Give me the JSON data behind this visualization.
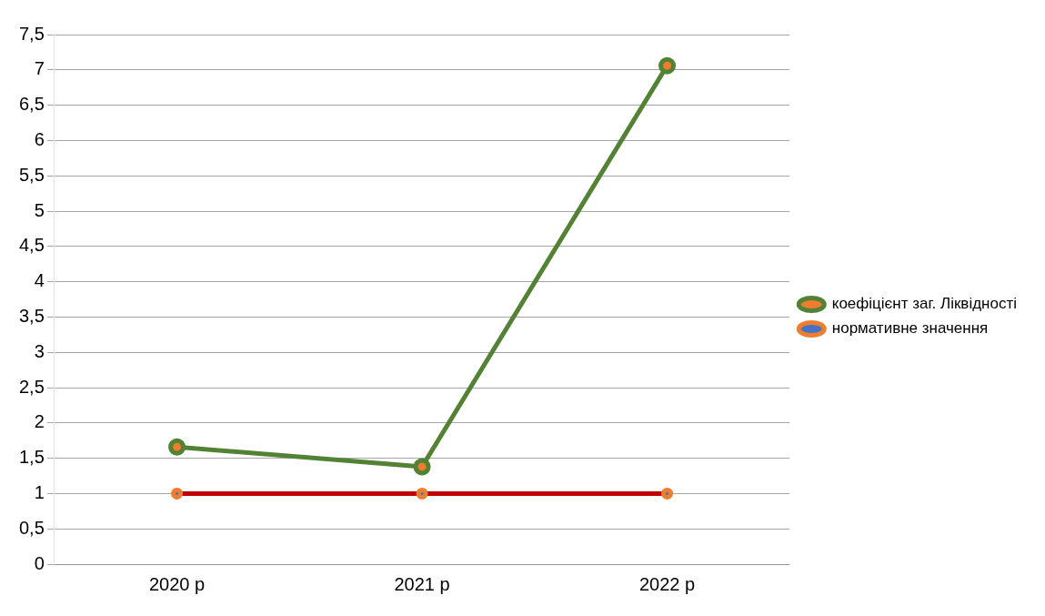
{
  "chart_data": {
    "type": "line",
    "categories": [
      "2020 р",
      "2021 р",
      "2022 р"
    ],
    "series": [
      {
        "name": "коефіцієнт заг. Ліквідності",
        "color": "#548235",
        "values": [
          1.66,
          1.38,
          7.06
        ]
      },
      {
        "name": "нормативне значення",
        "color": "#c00000",
        "values": [
          1,
          1,
          1
        ]
      }
    ],
    "ylim": [
      0,
      7.5
    ],
    "yticks": [
      0,
      {
        "value": 0.5,
        "label": "0,5"
      },
      1,
      {
        "value": 1.5,
        "label": "1,5"
      },
      2,
      {
        "value": 2.5,
        "label": "2,5"
      },
      3,
      {
        "value": 3.5,
        "label": "3,5"
      },
      4,
      {
        "value": 4.5,
        "label": "4,5"
      },
      5,
      {
        "value": 5.5,
        "label": "5,5"
      },
      6,
      {
        "value": 6.5,
        "label": "6,5"
      },
      7,
      {
        "value": 7.5,
        "label": "7,5"
      }
    ],
    "grid": "y",
    "legend": "right",
    "marker": "circle"
  }
}
